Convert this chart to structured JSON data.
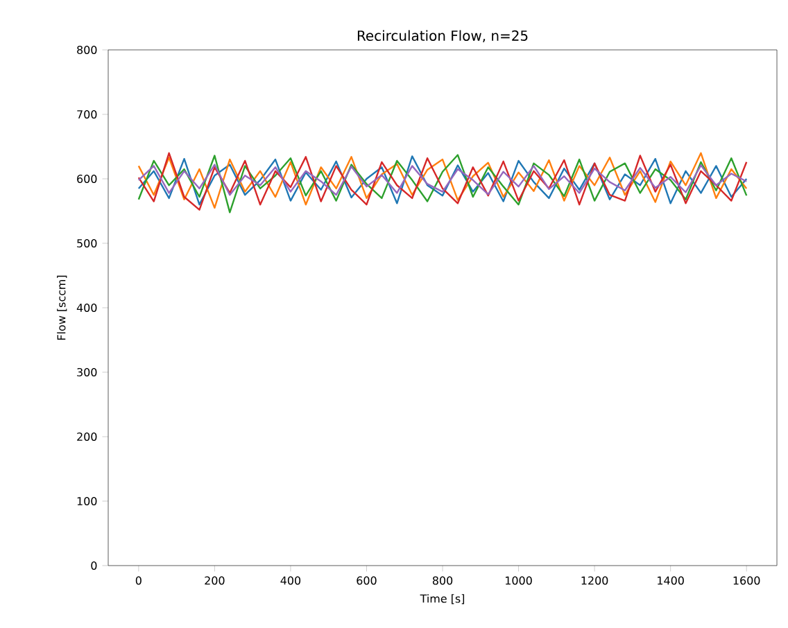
{
  "chart_data": {
    "type": "line",
    "title": "Recirculation Flow, n=25",
    "xlabel": "Time [s]",
    "ylabel": "Flow [sccm]",
    "x": [
      0,
      40,
      80,
      120,
      160,
      200,
      240,
      280,
      320,
      360,
      400,
      440,
      480,
      520,
      560,
      600,
      640,
      680,
      720,
      760,
      800,
      840,
      880,
      920,
      960,
      1000,
      1040,
      1080,
      1120,
      1160,
      1200,
      1240,
      1280,
      1320,
      1360,
      1400,
      1440,
      1480,
      1520,
      1560,
      1600
    ],
    "series": [
      {
        "color": "#1f77b4",
        "values": [
          585,
          612,
          570,
          631,
          560,
          605,
          622,
          575,
          598,
          630,
          566,
          610,
          583,
          627,
          571,
          600,
          618,
          562,
          635,
          590,
          574,
          621,
          580,
          609,
          565,
          628,
          595,
          570,
          616,
          583,
          624,
          568,
          607,
          590,
          631,
          562,
          612,
          578,
          620,
          572,
          600
        ]
      },
      {
        "color": "#ff7f0e",
        "values": [
          620,
          575,
          633,
          568,
          615,
          555,
          630,
          580,
          612,
          572,
          626,
          560,
          618,
          585,
          634,
          570,
          607,
          623,
          575,
          614,
          630,
          567,
          604,
          625,
          572,
          610,
          581,
          629,
          566,
          620,
          590,
          633,
          575,
          612,
          564,
          627,
          590,
          640,
          570,
          615,
          585
        ]
      },
      {
        "color": "#2ca02c",
        "values": [
          568,
          628,
          590,
          615,
          572,
          636,
          548,
          620,
          585,
          605,
          632,
          574,
          612,
          566,
          622,
          592,
          570,
          628,
          598,
          565,
          611,
          637,
          572,
          618,
          588,
          560,
          624,
          606,
          573,
          630,
          566,
          611,
          624,
          578,
          615,
          598,
          568,
          626,
          582,
          632,
          574
        ]
      },
      {
        "color": "#d62728",
        "values": [
          602,
          565,
          640,
          572,
          552,
          618,
          578,
          628,
          560,
          612,
          587,
          634,
          565,
          620,
          583,
          560,
          626,
          590,
          570,
          632,
          585,
          562,
          618,
          574,
          627,
          566,
          612,
          585,
          629,
          560,
          624,
          575,
          566,
          636,
          580,
          622,
          562,
          612,
          590,
          566,
          626
        ]
      },
      {
        "color": "#9467bd",
        "values": [
          598,
          620,
          578,
          612,
          585,
          622,
          575,
          605,
          590,
          618,
          580,
          612,
          596,
          575,
          619,
          588,
          606,
          578,
          620,
          592,
          580,
          615,
          598,
          576,
          611,
          588,
          620,
          584,
          604,
          578,
          616,
          595,
          582,
          617,
          586,
          603,
          579,
          621,
          590,
          608,
          596
        ]
      }
    ],
    "xlim": [
      -80,
      1680
    ],
    "ylim": [
      0,
      800
    ],
    "xticks": [
      0,
      200,
      400,
      600,
      800,
      1000,
      1200,
      1400,
      1600
    ],
    "yticks": [
      0,
      100,
      200,
      300,
      400,
      500,
      600,
      700,
      800
    ],
    "grid": false,
    "marker": "none",
    "line_style": "solid"
  }
}
